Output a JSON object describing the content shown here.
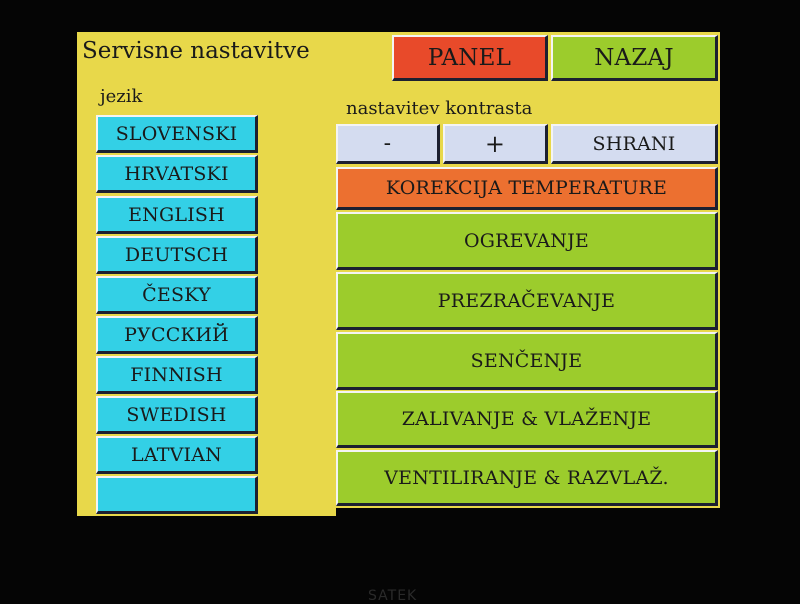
{
  "header": {
    "title": "Servisne nastavitve",
    "panel_label": "PANEL",
    "back_label": "NAZAJ"
  },
  "language": {
    "label": "jezik",
    "items": [
      "SLOVENSKI",
      "HRVATSKI",
      "ENGLISH",
      "DEUTSCH",
      "ČESKY",
      "РУССКИЙ",
      "FINNISH",
      "SWEDISH",
      "LATVIAN",
      ""
    ]
  },
  "contrast": {
    "label": "nastavitev kontrasta",
    "minus_label": "-",
    "plus_label": "+",
    "save_label": "SHRANI"
  },
  "menu": {
    "temperature_correction": "KOREKCIJA TEMPERATURE",
    "items": [
      "OGREVANJE",
      "PREZRAČEVANJE",
      "SENČENJE",
      "ZALIVANJE & VLAŽENJE",
      "VENTILIRANJE & RAZVLAŽ."
    ]
  },
  "bezel": {
    "logo": "SATEK"
  },
  "colors": {
    "background": "#e8d84a",
    "language_button": "#33d0e6",
    "panel_button": "#e84a2a",
    "back_button": "#9ccc2c",
    "temperature_button": "#ec7030",
    "contrast_button": "#d4dcf0",
    "menu_button": "#9ccc2c"
  }
}
